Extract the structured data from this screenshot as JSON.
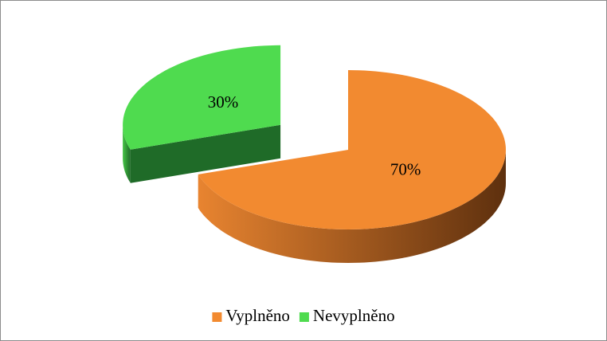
{
  "chart_data": {
    "type": "pie",
    "categories": [
      "Vyplněno",
      "Nevyplněno"
    ],
    "values": [
      70,
      30
    ],
    "value_labels": [
      "70%",
      "30%"
    ],
    "colors": [
      "#f28a30",
      "#4fdb4f"
    ],
    "legend": "bottom"
  }
}
